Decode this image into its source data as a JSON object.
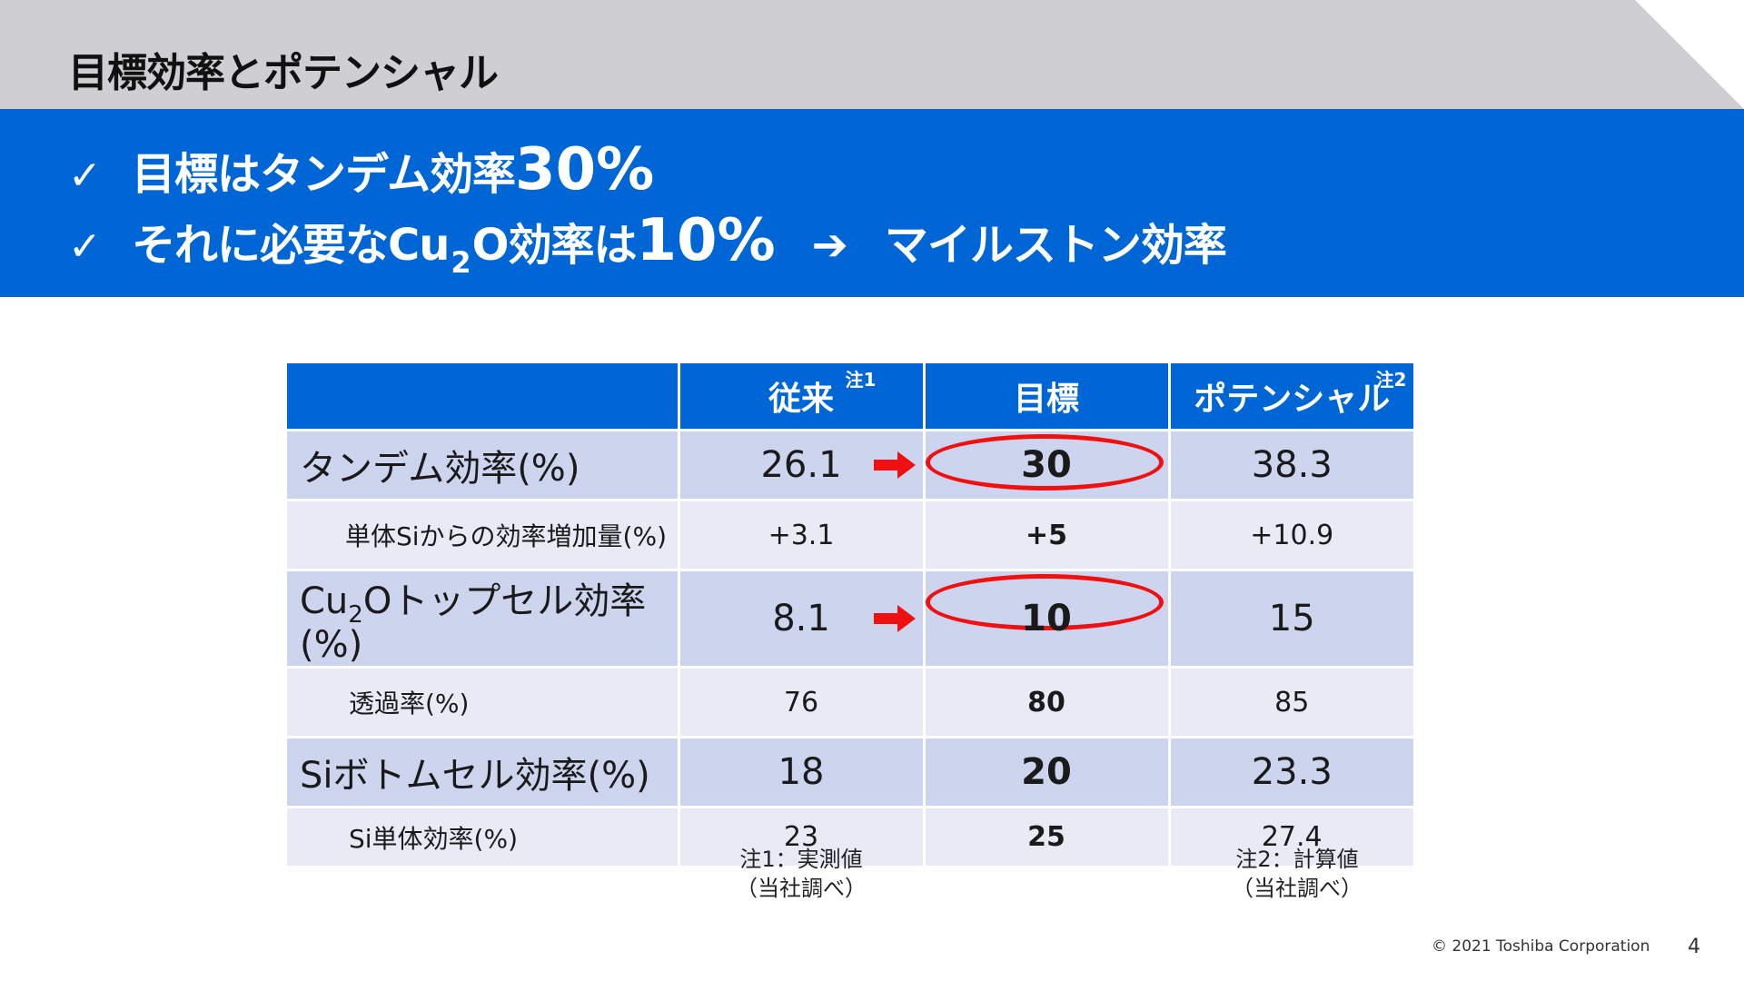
{
  "header": {
    "title": "目標効率とポテンシャル"
  },
  "banner": {
    "bullet_icon": "check-icon",
    "line1": {
      "check": "✓",
      "text": "目標はタンデム効率",
      "num": "30%"
    },
    "line2": {
      "check": "✓",
      "text_a": "それに必要なCu",
      "sub": "2",
      "text_b": "O効率は",
      "num": "10%",
      "arrow": "➔",
      "result": "マイルストン効率"
    }
  },
  "table": {
    "columns": [
      {
        "label": "",
        "note": ""
      },
      {
        "label": "従来",
        "note": "注1"
      },
      {
        "label": "目標",
        "note": ""
      },
      {
        "label": "ポテンシャル",
        "note": "注2"
      }
    ],
    "rows": [
      {
        "label": "タンデム効率(%)",
        "conventional": "26.1",
        "target": "30",
        "potential": "38.3",
        "highlight": true
      },
      {
        "label": "単体Siからの効率増加量(%)",
        "conventional": "+3.1",
        "target": "+5",
        "potential": "+10.9",
        "highlight": false
      },
      {
        "label_a": "Cu",
        "label_sub": "2",
        "label_b": "Oトップセル効率(%)",
        "conventional": "8.1",
        "target": "10",
        "potential": "15",
        "highlight": true
      },
      {
        "label": "透過率(%)",
        "conventional": "76",
        "target": "80",
        "potential": "85",
        "highlight": false
      },
      {
        "label": "Siボトムセル効率(%)",
        "conventional": "18",
        "target": "20",
        "potential": "23.3",
        "highlight": false
      },
      {
        "label": "Si単体効率(%)",
        "conventional": "23",
        "target": "25",
        "potential": "27.4",
        "highlight": false
      }
    ]
  },
  "notes": {
    "note1": {
      "line1": "注1：実測値",
      "line2": "（当社調べ）"
    },
    "note2": {
      "line1": "注2：計算値",
      "line2": "（当社調べ）"
    }
  },
  "footer": {
    "copyright": "© 2021 Toshiba Corporation",
    "page_number": "4"
  },
  "colors": {
    "banner_blue": "#0066d6",
    "title_gray": "#cfcfd3",
    "row_main": "#cdd4ee",
    "row_sub": "#e8ebf6",
    "highlight_red": "#ee1111"
  }
}
